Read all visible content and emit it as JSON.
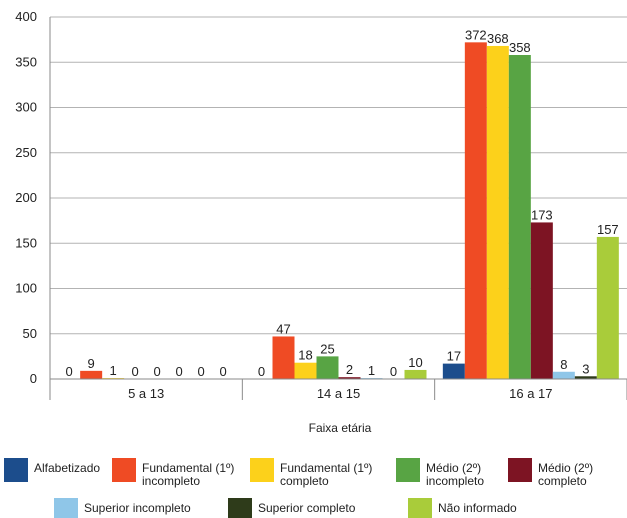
{
  "chart_data": {
    "type": "bar",
    "categories": [
      "5 a 13",
      "14 a 15",
      "16 a 17"
    ],
    "series": [
      {
        "name": "Alfabetizado",
        "color": "#1c4d8c",
        "values": [
          0,
          0,
          17
        ]
      },
      {
        "name": "Fundamental (1º)\nincompleto",
        "color": "#ef4b24",
        "values": [
          9,
          47,
          372
        ]
      },
      {
        "name": "Fundamental (1º)\ncompleto",
        "color": "#fcd11b",
        "values": [
          1,
          18,
          368
        ]
      },
      {
        "name": "Médio (2º)\nincompleto",
        "color": "#58a444",
        "values": [
          0,
          25,
          358
        ]
      },
      {
        "name": "Médio (2º)\ncompleto",
        "color": "#7d1423",
        "values": [
          0,
          2,
          173
        ]
      },
      {
        "name": "Superior incompleto",
        "color": "#8fc6e8",
        "values": [
          0,
          1,
          8
        ]
      },
      {
        "name": "Superior completo",
        "color": "#2e3b1a",
        "values": [
          0,
          0,
          3
        ]
      },
      {
        "name": "Não informado",
        "color": "#a9cc3a",
        "values": [
          0,
          10,
          157
        ]
      }
    ],
    "xlabel": "Faixa etária",
    "ylabel": "",
    "ylim": [
      0,
      400
    ],
    "yticks": [
      "0",
      "50",
      "100",
      "150",
      "200",
      "250",
      "300",
      "350",
      "400"
    ],
    "grid": true,
    "legend": "bottom"
  }
}
